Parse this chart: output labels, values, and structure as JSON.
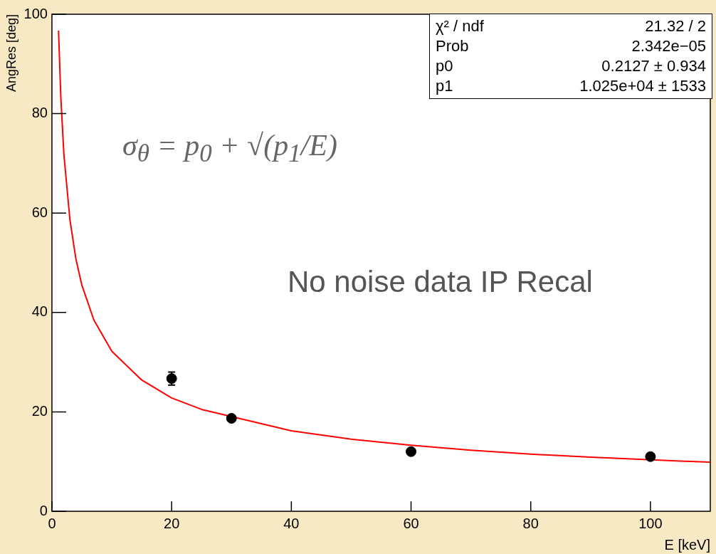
{
  "chart_data": {
    "type": "scatter",
    "xlabel": "E [keV]",
    "ylabel": "AngRes [deg]",
    "xlim": [
      0,
      110
    ],
    "xticks": [
      0,
      20,
      40,
      60,
      80,
      100
    ],
    "ylim": [
      0,
      100
    ],
    "yticks": [
      0,
      20,
      40,
      60,
      80,
      100
    ],
    "grid": false,
    "legend": false,
    "marker": "circle",
    "annotations": [
      "σ$_{θ}$ = p$_{0}$ + √(p$_{1}$/E)",
      "No noise data IP Recal",
      "χ² / ndf",
      "21.32 / 2",
      "Prob",
      "2.342e−05",
      "p0",
      "0.2127 ± 0.934",
      "p1",
      "1.025e+04 ±  1533"
    ],
    "series": [
      {
        "color": "#000000",
        "x": [
          20,
          30,
          60,
          100
        ],
        "values": [
          26.7,
          18.7,
          12.0,
          11.0
        ],
        "errors": [
          1.3,
          null,
          null,
          null
        ]
      },
      {
        "type": "line",
        "color": "#ff0000",
        "marker": "none",
        "line_style": "solid",
        "x": [
          1.1,
          1.5,
          2,
          3,
          4,
          5,
          7,
          10,
          15,
          20,
          25,
          40,
          50,
          60,
          70,
          80,
          90,
          105,
          110
        ],
        "values": [
          96.7,
          82.9,
          71.8,
          58.7,
          50.8,
          45.5,
          38.5,
          32.2,
          26.4,
          22.8,
          20.5,
          16.2,
          14.5,
          13.3,
          12.3,
          11.5,
          10.9,
          10.1,
          9.9
        ]
      }
    ]
  }
}
